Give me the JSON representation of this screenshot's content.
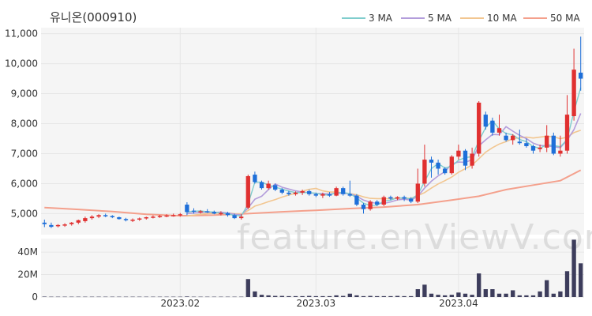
{
  "chart_data": {
    "type": "candlestick",
    "title": "유니온(000910)",
    "watermark": "feature.enViewV.com",
    "legend": [
      {
        "label": "3 MA",
        "color": "#7fcdcd"
      },
      {
        "label": "5 MA",
        "color": "#b39ddb"
      },
      {
        "label": "10 MA",
        "color": "#f2c690"
      },
      {
        "label": "50 MA",
        "color": "#f4a08c"
      }
    ],
    "price_axis": {
      "ylim": [
        4300,
        11200
      ],
      "ticks": [
        5000,
        6000,
        7000,
        8000,
        9000,
        10000,
        11000
      ],
      "tick_labels": [
        "5,000",
        "6,000",
        "7,000",
        "8,000",
        "9,000",
        "10,000",
        "11,000"
      ]
    },
    "volume_axis": {
      "ylim": [
        0,
        52
      ],
      "ticks": [
        0,
        20,
        40
      ],
      "tick_labels": [
        "0",
        "20M",
        "40M"
      ]
    },
    "x_axis": {
      "labels": [
        {
          "text": "2023.02",
          "index": 20
        },
        {
          "text": "2023.03",
          "index": 40
        },
        {
          "text": "2023.04",
          "index": 61
        }
      ]
    },
    "colors": {
      "up": "#e03030",
      "down": "#1e6fd9",
      "volume": "#3d3d5c",
      "grid": "#e6e6e6",
      "panel": "#f5f5f5"
    },
    "candles": [
      [
        4700,
        4800,
        4550,
        4650
      ],
      [
        4620,
        4700,
        4520,
        4560
      ],
      [
        4580,
        4650,
        4540,
        4620
      ],
      [
        4600,
        4680,
        4560,
        4640
      ],
      [
        4650,
        4720,
        4600,
        4700
      ],
      [
        4700,
        4800,
        4650,
        4780
      ],
      [
        4750,
        4900,
        4700,
        4850
      ],
      [
        4850,
        4950,
        4800,
        4900
      ],
      [
        4900,
        4980,
        4850,
        4950
      ],
      [
        4950,
        5000,
        4880,
        4920
      ],
      [
        4920,
        4950,
        4850,
        4880
      ],
      [
        4880,
        4900,
        4800,
        4820
      ],
      [
        4820,
        4860,
        4740,
        4780
      ],
      [
        4780,
        4840,
        4720,
        4800
      ],
      [
        4800,
        4870,
        4760,
        4840
      ],
      [
        4840,
        4900,
        4800,
        4880
      ],
      [
        4880,
        4940,
        4840,
        4900
      ],
      [
        4900,
        4960,
        4860,
        4920
      ],
      [
        4920,
        4980,
        4880,
        4940
      ],
      [
        4940,
        5000,
        4900,
        4950
      ],
      [
        4960,
        5020,
        4900,
        4980
      ],
      [
        5300,
        5380,
        4950,
        5050
      ],
      [
        5100,
        5180,
        5000,
        5060
      ],
      [
        5060,
        5120,
        5000,
        5080
      ],
      [
        5080,
        5150,
        5020,
        5060
      ],
      [
        5060,
        5100,
        4980,
        5000
      ],
      [
        5000,
        5080,
        4940,
        5020
      ],
      [
        5020,
        5060,
        4900,
        4950
      ],
      [
        4950,
        5000,
        4820,
        4850
      ],
      [
        4850,
        4980,
        4800,
        4900
      ],
      [
        5200,
        6300,
        5150,
        6250
      ],
      [
        6300,
        6400,
        6000,
        6050
      ],
      [
        6050,
        6100,
        5800,
        5850
      ],
      [
        5850,
        6100,
        5800,
        6000
      ],
      [
        5950,
        6000,
        5750,
        5800
      ],
      [
        5800,
        5850,
        5650,
        5700
      ],
      [
        5700,
        5760,
        5600,
        5650
      ],
      [
        5650,
        5740,
        5600,
        5700
      ],
      [
        5700,
        5800,
        5620,
        5750
      ],
      [
        5750,
        5800,
        5600,
        5650
      ],
      [
        5650,
        5700,
        5550,
        5600
      ],
      [
        5600,
        5700,
        5520,
        5650
      ],
      [
        5650,
        5720,
        5560,
        5600
      ],
      [
        5600,
        5900,
        5580,
        5850
      ],
      [
        5850,
        5900,
        5600,
        5650
      ],
      [
        5650,
        6100,
        5560,
        5600
      ],
      [
        5600,
        5650,
        5250,
        5300
      ],
      [
        5300,
        5350,
        5000,
        5150
      ],
      [
        5150,
        5450,
        5100,
        5400
      ],
      [
        5400,
        5450,
        5250,
        5300
      ],
      [
        5300,
        5600,
        5250,
        5550
      ],
      [
        5550,
        5600,
        5450,
        5500
      ],
      [
        5500,
        5580,
        5450,
        5550
      ],
      [
        5550,
        5600,
        5420,
        5500
      ],
      [
        5500,
        5550,
        5350,
        5400
      ],
      [
        5400,
        6500,
        5350,
        6000
      ],
      [
        6000,
        7300,
        5900,
        6800
      ],
      [
        6800,
        6900,
        6200,
        6700
      ],
      [
        6700,
        6800,
        6300,
        6500
      ],
      [
        6500,
        6550,
        6300,
        6350
      ],
      [
        6350,
        6950,
        6300,
        6900
      ],
      [
        6900,
        7300,
        6800,
        7100
      ],
      [
        7100,
        7150,
        6450,
        6600
      ],
      [
        6600,
        7200,
        6500,
        7000
      ],
      [
        7000,
        8750,
        6900,
        8700
      ],
      [
        8300,
        8400,
        7800,
        7900
      ],
      [
        8100,
        8200,
        7600,
        7700
      ],
      [
        7700,
        8300,
        7600,
        7850
      ],
      [
        7600,
        7700,
        7400,
        7450
      ],
      [
        7450,
        7650,
        7300,
        7600
      ],
      [
        7400,
        7800,
        7300,
        7350
      ],
      [
        7350,
        7500,
        7200,
        7250
      ],
      [
        7250,
        7300,
        7000,
        7100
      ],
      [
        7150,
        7300,
        7050,
        7200
      ],
      [
        7200,
        7950,
        7050,
        7600
      ],
      [
        7600,
        7700,
        6950,
        7000
      ],
      [
        7000,
        7600,
        6900,
        7100
      ],
      [
        7100,
        8950,
        7000,
        8300
      ],
      [
        8250,
        10500,
        8100,
        9800
      ],
      [
        9700,
        10900,
        9100,
        9500
      ]
    ],
    "volume": [
      0.4,
      0.3,
      0.3,
      0.3,
      0.3,
      0.3,
      0.3,
      0.3,
      0.3,
      0.3,
      0.3,
      0.3,
      0.3,
      0.3,
      0.3,
      0.3,
      0.3,
      0.3,
      0.3,
      0.3,
      0.3,
      0.5,
      0.3,
      0.3,
      0.3,
      0.3,
      0.3,
      0.3,
      0.3,
      0.3,
      16,
      5,
      2,
      1.5,
      1,
      1,
      0.8,
      0.8,
      0.8,
      1,
      0.8,
      0.8,
      0.8,
      1.5,
      1,
      3,
      1.5,
      0.8,
      1,
      0.8,
      0.8,
      0.8,
      1,
      0.8,
      0.8,
      7,
      11,
      3,
      2,
      1.5,
      2,
      4,
      3,
      2,
      21,
      7,
      7,
      3,
      3,
      6,
      1.5,
      1.5,
      1.5,
      5,
      15,
      3,
      5,
      23,
      51,
      30
    ],
    "ma": {
      "ma3": [
        [
          21,
          5050
        ],
        [
          22,
          5080
        ],
        [
          23,
          5090
        ],
        [
          24,
          5060
        ],
        [
          25,
          5050
        ],
        [
          26,
          5020
        ],
        [
          27,
          4990
        ],
        [
          28,
          4940
        ],
        [
          29,
          4930
        ],
        [
          30,
          5320
        ],
        [
          31,
          6050
        ],
        [
          32,
          6050
        ],
        [
          33,
          5950
        ],
        [
          34,
          5880
        ],
        [
          35,
          5820
        ],
        [
          36,
          5750
        ],
        [
          37,
          5700
        ],
        [
          38,
          5700
        ],
        [
          39,
          5700
        ],
        [
          40,
          5680
        ],
        [
          41,
          5630
        ],
        [
          42,
          5620
        ],
        [
          43,
          5700
        ],
        [
          44,
          5700
        ],
        [
          45,
          5670
        ],
        [
          46,
          5520
        ],
        [
          47,
          5350
        ],
        [
          48,
          5270
        ],
        [
          49,
          5280
        ],
        [
          50,
          5420
        ],
        [
          51,
          5450
        ],
        [
          52,
          5530
        ],
        [
          53,
          5520
        ],
        [
          54,
          5490
        ],
        [
          55,
          5630
        ],
        [
          56,
          6070
        ],
        [
          57,
          6500
        ],
        [
          58,
          6670
        ],
        [
          59,
          6520
        ],
        [
          60,
          6580
        ],
        [
          61,
          6780
        ],
        [
          62,
          6870
        ],
        [
          63,
          6900
        ],
        [
          64,
          7430
        ],
        [
          65,
          7870
        ],
        [
          66,
          8100
        ],
        [
          67,
          7820
        ],
        [
          68,
          7670
        ],
        [
          69,
          7630
        ],
        [
          70,
          7470
        ],
        [
          71,
          7400
        ],
        [
          72,
          7230
        ],
        [
          73,
          7180
        ],
        [
          74,
          7300
        ],
        [
          75,
          7270
        ],
        [
          76,
          7230
        ],
        [
          77,
          7470
        ],
        [
          78,
          8400
        ],
        [
          79,
          9200
        ]
      ],
      "ma5": [
        [
          21,
          5000
        ],
        [
          22,
          5020
        ],
        [
          23,
          5040
        ],
        [
          24,
          5050
        ],
        [
          25,
          5040
        ],
        [
          26,
          5050
        ],
        [
          27,
          5020
        ],
        [
          28,
          4980
        ],
        [
          29,
          4960
        ],
        [
          30,
          5190
        ],
        [
          31,
          5480
        ],
        [
          32,
          5580
        ],
        [
          33,
          5800
        ],
        [
          34,
          5990
        ],
        [
          35,
          5880
        ],
        [
          36,
          5820
        ],
        [
          37,
          5760
        ],
        [
          38,
          5720
        ],
        [
          39,
          5700
        ],
        [
          40,
          5670
        ],
        [
          41,
          5670
        ],
        [
          42,
          5650
        ],
        [
          43,
          5680
        ],
        [
          44,
          5670
        ],
        [
          45,
          5670
        ],
        [
          46,
          5580
        ],
        [
          47,
          5450
        ],
        [
          48,
          5380
        ],
        [
          49,
          5340
        ],
        [
          50,
          5340
        ],
        [
          51,
          5390
        ],
        [
          52,
          5460
        ],
        [
          53,
          5480
        ],
        [
          54,
          5450
        ],
        [
          55,
          5580
        ],
        [
          56,
          5850
        ],
        [
          57,
          6080
        ],
        [
          58,
          6260
        ],
        [
          59,
          6400
        ],
        [
          60,
          6660
        ],
        [
          61,
          6720
        ],
        [
          62,
          6710
        ],
        [
          63,
          6800
        ],
        [
          64,
          7260
        ],
        [
          65,
          7460
        ],
        [
          66,
          7640
        ],
        [
          67,
          7630
        ],
        [
          68,
          7900
        ],
        [
          69,
          7750
        ],
        [
          70,
          7610
        ],
        [
          71,
          7500
        ],
        [
          72,
          7350
        ],
        [
          73,
          7270
        ],
        [
          74,
          7260
        ],
        [
          75,
          7230
        ],
        [
          76,
          7200
        ],
        [
          77,
          7450
        ],
        [
          78,
          7800
        ],
        [
          79,
          8340
        ]
      ],
      "ma10": [
        [
          21,
          4920
        ],
        [
          22,
          4950
        ],
        [
          23,
          4980
        ],
        [
          24,
          5000
        ],
        [
          25,
          5010
        ],
        [
          26,
          5020
        ],
        [
          27,
          5020
        ],
        [
          28,
          5000
        ],
        [
          29,
          4990
        ],
        [
          30,
          5100
        ],
        [
          31,
          5250
        ],
        [
          32,
          5320
        ],
        [
          33,
          5400
        ],
        [
          34,
          5470
        ],
        [
          35,
          5550
        ],
        [
          36,
          5620
        ],
        [
          37,
          5680
        ],
        [
          38,
          5750
        ],
        [
          39,
          5810
        ],
        [
          40,
          5840
        ],
        [
          41,
          5760
        ],
        [
          42,
          5720
        ],
        [
          43,
          5720
        ],
        [
          44,
          5690
        ],
        [
          45,
          5670
        ],
        [
          46,
          5630
        ],
        [
          47,
          5560
        ],
        [
          48,
          5510
        ],
        [
          49,
          5500
        ],
        [
          50,
          5500
        ],
        [
          51,
          5500
        ],
        [
          52,
          5510
        ],
        [
          53,
          5520
        ],
        [
          54,
          5510
        ],
        [
          55,
          5600
        ],
        [
          56,
          5700
        ],
        [
          57,
          5850
        ],
        [
          58,
          5990
        ],
        [
          59,
          6100
        ],
        [
          60,
          6220
        ],
        [
          61,
          6380
        ],
        [
          62,
          6500
        ],
        [
          63,
          6620
        ],
        [
          64,
          6830
        ],
        [
          65,
          7050
        ],
        [
          66,
          7200
        ],
        [
          67,
          7320
        ],
        [
          68,
          7400
        ],
        [
          69,
          7500
        ],
        [
          70,
          7530
        ],
        [
          71,
          7550
        ],
        [
          72,
          7520
        ],
        [
          73,
          7550
        ],
        [
          74,
          7580
        ],
        [
          75,
          7560
        ],
        [
          76,
          7500
        ],
        [
          77,
          7550
        ],
        [
          78,
          7700
        ],
        [
          79,
          7780
        ]
      ],
      "ma50": [
        [
          0,
          5200
        ],
        [
          5,
          5140
        ],
        [
          10,
          5070
        ],
        [
          15,
          4980
        ],
        [
          20,
          4930
        ],
        [
          25,
          4950
        ],
        [
          30,
          5000
        ],
        [
          35,
          5060
        ],
        [
          40,
          5110
        ],
        [
          45,
          5170
        ],
        [
          50,
          5220
        ],
        [
          55,
          5300
        ],
        [
          60,
          5450
        ],
        [
          64,
          5580
        ],
        [
          68,
          5800
        ],
        [
          72,
          5950
        ],
        [
          76,
          6100
        ],
        [
          79,
          6450
        ]
      ]
    }
  }
}
